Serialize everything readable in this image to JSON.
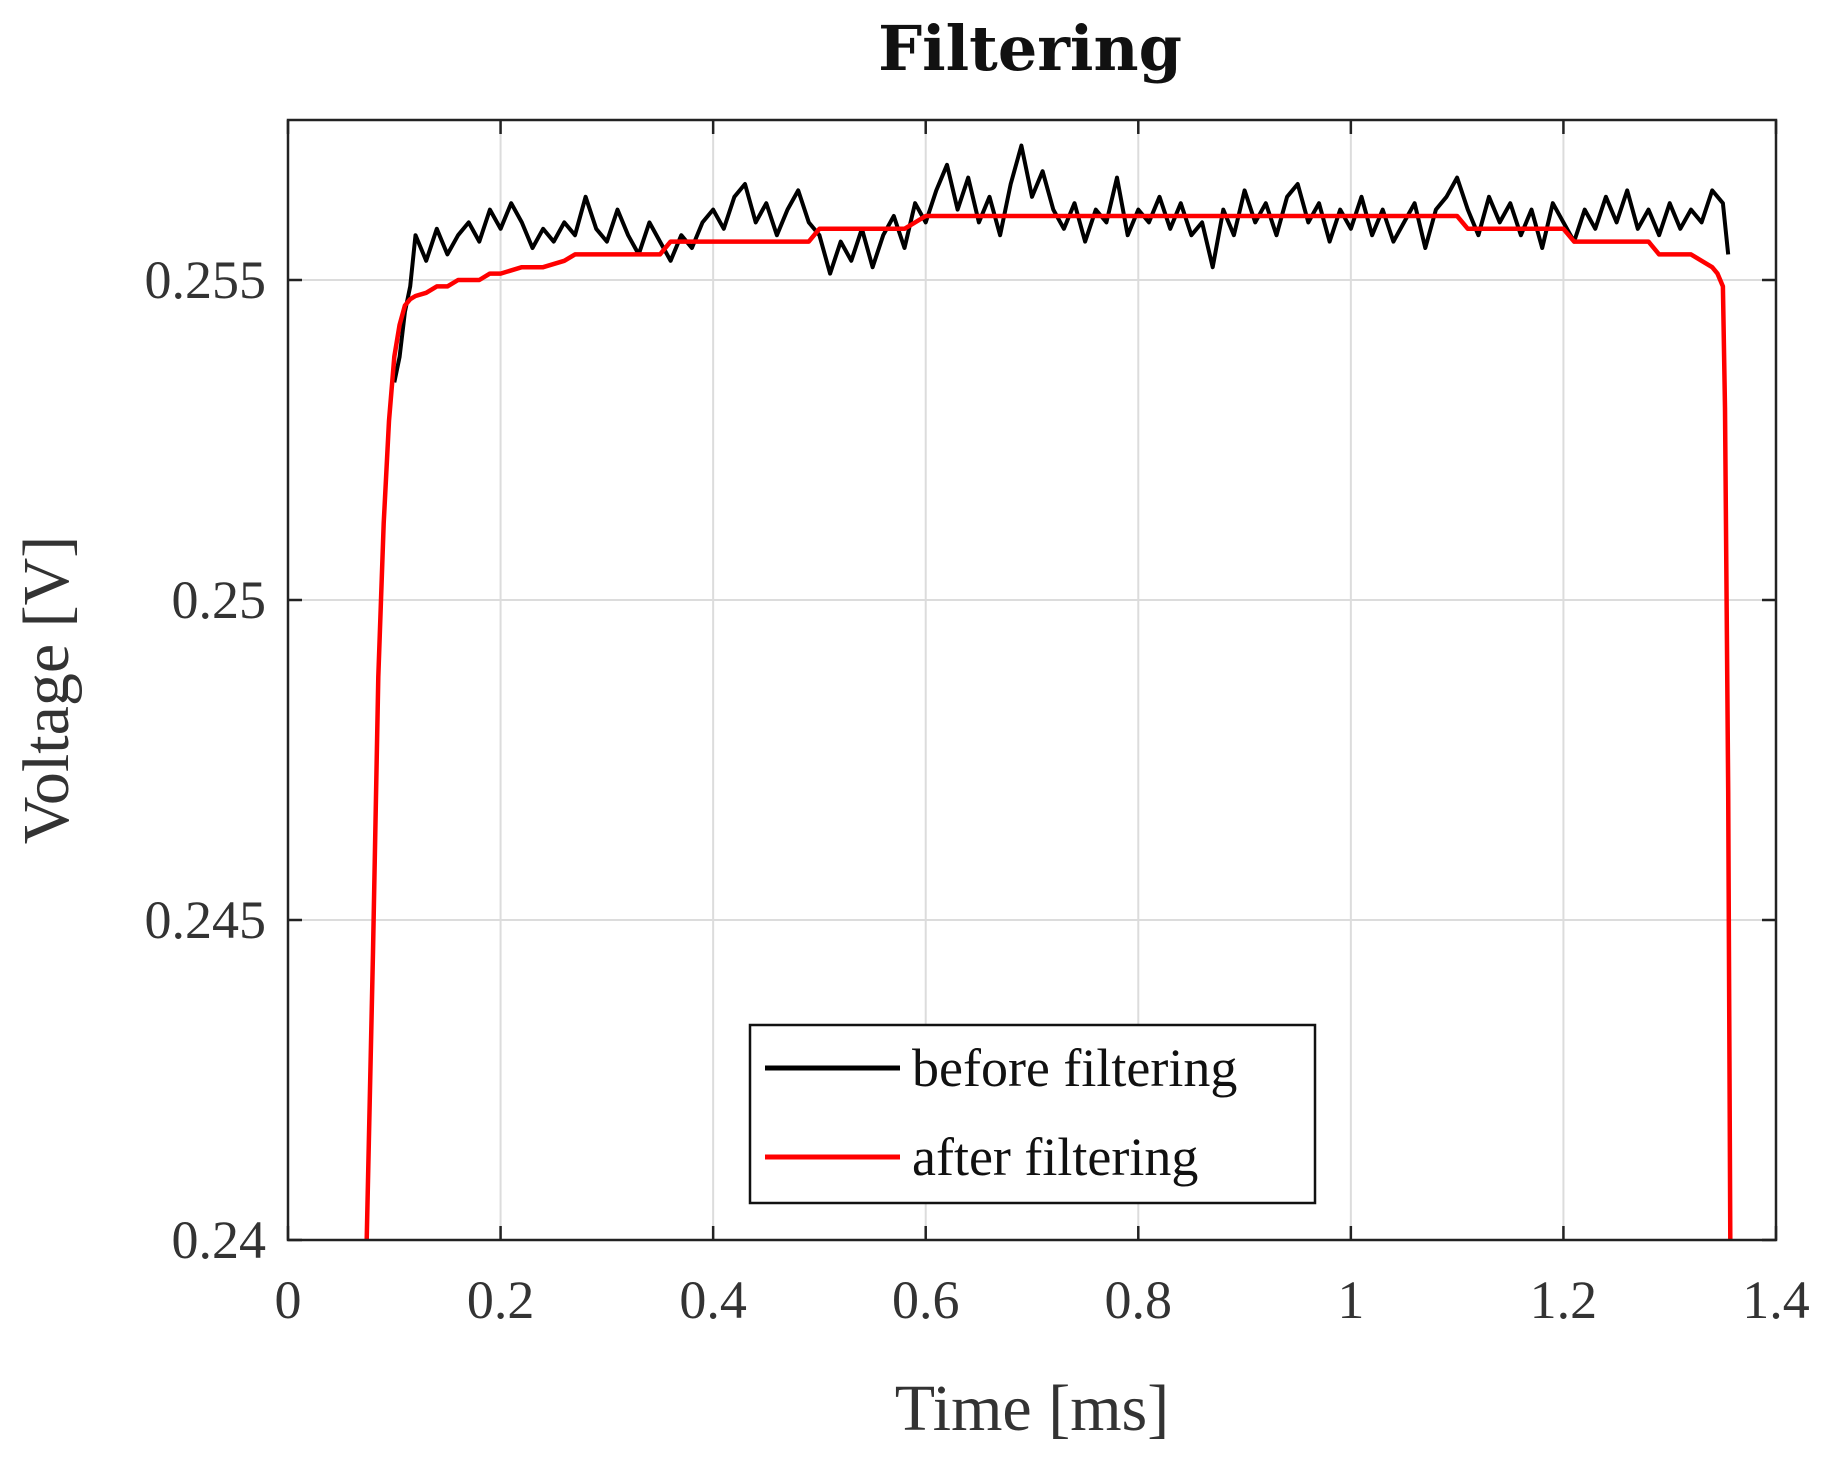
{
  "chart_data": {
    "type": "line",
    "title": "Filtering",
    "xlabel": "Time [ms]",
    "ylabel": "Voltage [V]",
    "xlim": [
      0,
      1.4
    ],
    "ylim": [
      0.24,
      0.2575
    ],
    "xticks": [
      0,
      0.2,
      0.4,
      0.6,
      0.8,
      1.0,
      1.2,
      1.4
    ],
    "xtick_labels": [
      "0",
      "0.2",
      "0.4",
      "0.6",
      "0.8",
      "1",
      "1.2",
      "1.4"
    ],
    "yticks": [
      0.24,
      0.245,
      0.25,
      0.255
    ],
    "ytick_labels": [
      "0.24",
      "0.245",
      "0.25",
      "0.255"
    ],
    "grid": true,
    "legend_position": "bottom-center",
    "series": [
      {
        "name": "before filtering",
        "color": "#000000",
        "x": [
          0.1,
          0.105,
          0.11,
          0.115,
          0.12,
          0.13,
          0.14,
          0.15,
          0.16,
          0.17,
          0.18,
          0.19,
          0.2,
          0.21,
          0.22,
          0.23,
          0.24,
          0.25,
          0.26,
          0.27,
          0.28,
          0.29,
          0.3,
          0.31,
          0.32,
          0.33,
          0.34,
          0.35,
          0.36,
          0.37,
          0.38,
          0.39,
          0.4,
          0.41,
          0.42,
          0.43,
          0.44,
          0.45,
          0.46,
          0.47,
          0.48,
          0.49,
          0.5,
          0.51,
          0.52,
          0.53,
          0.54,
          0.55,
          0.56,
          0.57,
          0.58,
          0.59,
          0.6,
          0.61,
          0.62,
          0.63,
          0.64,
          0.65,
          0.66,
          0.67,
          0.68,
          0.69,
          0.7,
          0.71,
          0.72,
          0.73,
          0.74,
          0.75,
          0.76,
          0.77,
          0.78,
          0.79,
          0.8,
          0.81,
          0.82,
          0.83,
          0.84,
          0.85,
          0.86,
          0.87,
          0.88,
          0.89,
          0.9,
          0.91,
          0.92,
          0.93,
          0.94,
          0.95,
          0.96,
          0.97,
          0.98,
          0.99,
          1.0,
          1.01,
          1.02,
          1.03,
          1.04,
          1.05,
          1.06,
          1.07,
          1.08,
          1.09,
          1.1,
          1.11,
          1.12,
          1.13,
          1.14,
          1.15,
          1.16,
          1.17,
          1.18,
          1.19,
          1.2,
          1.21,
          1.22,
          1.23,
          1.24,
          1.25,
          1.26,
          1.27,
          1.28,
          1.29,
          1.3,
          1.31,
          1.32,
          1.33,
          1.34,
          1.35,
          1.355
        ],
        "y": [
          0.2534,
          0.2538,
          0.2545,
          0.2549,
          0.2557,
          0.2553,
          0.2558,
          0.2554,
          0.2557,
          0.2559,
          0.2556,
          0.2561,
          0.2558,
          0.2562,
          0.2559,
          0.2555,
          0.2558,
          0.2556,
          0.2559,
          0.2557,
          0.2563,
          0.2558,
          0.2556,
          0.2561,
          0.2557,
          0.2554,
          0.2559,
          0.2556,
          0.2553,
          0.2557,
          0.2555,
          0.2559,
          0.2561,
          0.2558,
          0.2563,
          0.2565,
          0.2559,
          0.2562,
          0.2557,
          0.2561,
          0.2564,
          0.2559,
          0.2557,
          0.2551,
          0.2556,
          0.2553,
          0.2558,
          0.2552,
          0.2557,
          0.256,
          0.2555,
          0.2562,
          0.2559,
          0.2564,
          0.2568,
          0.2561,
          0.2566,
          0.2559,
          0.2563,
          0.2557,
          0.2565,
          0.2571,
          0.2563,
          0.2567,
          0.2561,
          0.2558,
          0.2562,
          0.2556,
          0.2561,
          0.2559,
          0.2566,
          0.2557,
          0.2561,
          0.2559,
          0.2563,
          0.2558,
          0.2562,
          0.2557,
          0.2559,
          0.2552,
          0.2561,
          0.2557,
          0.2564,
          0.2559,
          0.2562,
          0.2557,
          0.2563,
          0.2565,
          0.2559,
          0.2562,
          0.2556,
          0.2561,
          0.2558,
          0.2563,
          0.2557,
          0.2561,
          0.2556,
          0.2559,
          0.2562,
          0.2555,
          0.2561,
          0.2563,
          0.2566,
          0.2561,
          0.2557,
          0.2563,
          0.2559,
          0.2562,
          0.2557,
          0.2561,
          0.2555,
          0.2562,
          0.2559,
          0.2556,
          0.2561,
          0.2558,
          0.2563,
          0.2559,
          0.2564,
          0.2558,
          0.2561,
          0.2557,
          0.2562,
          0.2558,
          0.2561,
          0.2559,
          0.2564,
          0.2562,
          0.2554
        ]
      },
      {
        "name": "after filtering",
        "color": "#ff0000",
        "x": [
          0.074,
          0.08,
          0.085,
          0.09,
          0.095,
          0.1,
          0.105,
          0.11,
          0.115,
          0.12,
          0.13,
          0.14,
          0.15,
          0.16,
          0.17,
          0.18,
          0.19,
          0.2,
          0.22,
          0.24,
          0.26,
          0.27,
          0.3,
          0.35,
          0.36,
          0.4,
          0.45,
          0.49,
          0.5,
          0.55,
          0.58,
          0.6,
          0.65,
          0.7,
          0.8,
          0.9,
          1.0,
          1.1,
          1.11,
          1.15,
          1.2,
          1.21,
          1.25,
          1.28,
          1.29,
          1.32,
          1.33,
          1.34,
          1.345,
          1.35,
          1.352,
          1.355,
          1.357
        ],
        "y": [
          0.24,
          0.2445,
          0.2488,
          0.2512,
          0.2528,
          0.2538,
          0.2543,
          0.2546,
          0.2547,
          0.25475,
          0.2548,
          0.2549,
          0.2549,
          0.255,
          0.255,
          0.255,
          0.2551,
          0.2551,
          0.2552,
          0.2552,
          0.2553,
          0.2554,
          0.2554,
          0.2554,
          0.2556,
          0.2556,
          0.2556,
          0.2556,
          0.2558,
          0.2558,
          0.2558,
          0.256,
          0.256,
          0.256,
          0.256,
          0.256,
          0.256,
          0.256,
          0.2558,
          0.2558,
          0.2558,
          0.2556,
          0.2556,
          0.2556,
          0.2554,
          0.2554,
          0.2553,
          0.2552,
          0.2551,
          0.2549,
          0.253,
          0.247,
          0.24
        ]
      }
    ]
  }
}
